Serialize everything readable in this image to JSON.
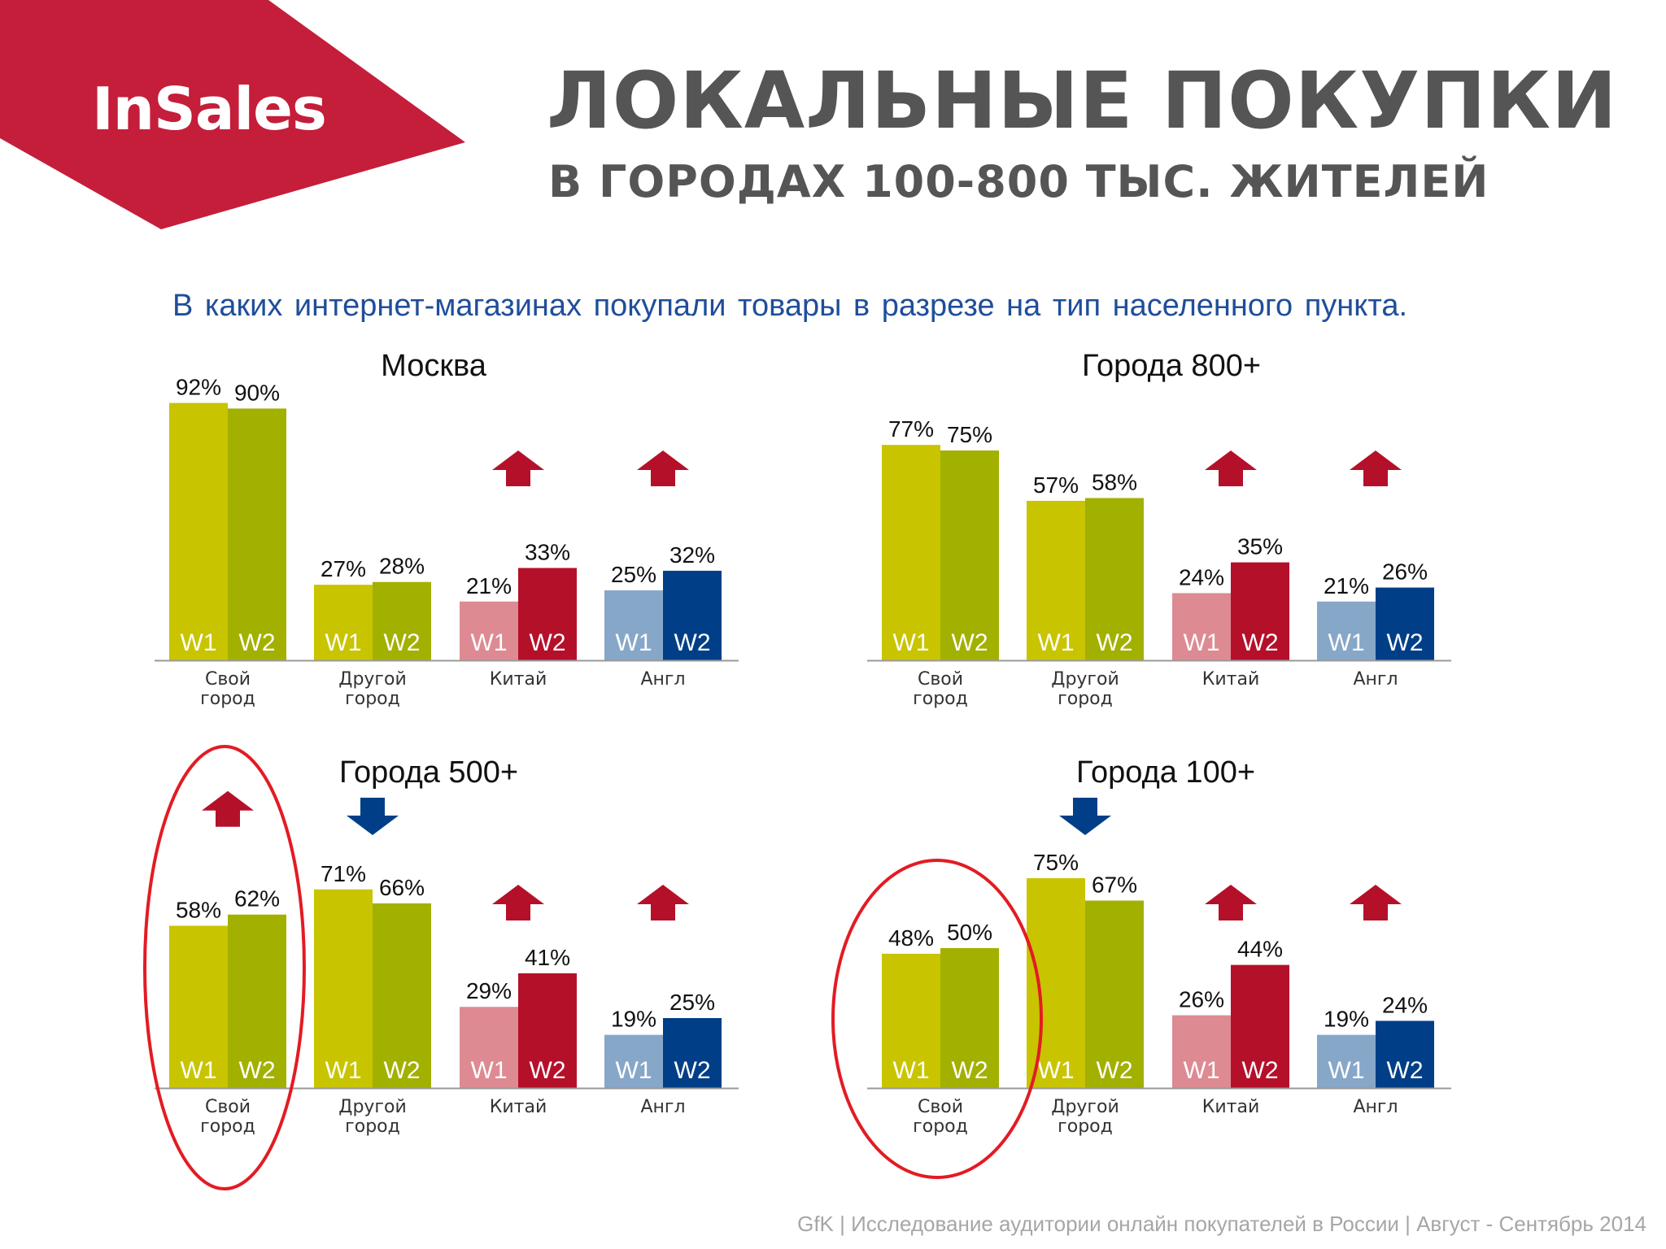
{
  "brand": {
    "logo_text": "InSales",
    "colors": {
      "banner": "#c41e3a"
    }
  },
  "header": {
    "title": "ЛОКАЛЬНЫЕ ПОКУПКИ",
    "subtitle": "В ГОРОДАХ 100-800 ТЫС. ЖИТЕЛЕЙ"
  },
  "question": "В каких интернет-магазинах покупали товары в разрезе на тип населенного пункта.",
  "footer": "GfK | Исследование аудитории онлайн покупателей в России | Август - Сентябрь 2014",
  "colors": {
    "own_w1": "#c8c400",
    "own_w2": "#a2b000",
    "china_w1": "#dd8a93",
    "china_w2": "#b5102a",
    "uk_w1": "#87a7c9",
    "uk_w2": "#003f87",
    "arrow_up": "#b5102a",
    "arrow_down": "#003f87",
    "highlight": "#e31b23"
  },
  "chart_data": [
    {
      "type": "bar",
      "title": "Москва",
      "categories": [
        "Свой\nгород",
        "Другой\nгород",
        "Китай",
        "Англ"
      ],
      "series": [
        {
          "name": "W1",
          "values": [
            92,
            27,
            21,
            25
          ]
        },
        {
          "name": "W2",
          "values": [
            90,
            28,
            33,
            32
          ]
        }
      ],
      "value_suffix": "%",
      "trend_arrows": [
        null,
        null,
        "up",
        "up"
      ],
      "highlight_category": null
    },
    {
      "type": "bar",
      "title": "Города 800+",
      "categories": [
        "Свой\nгород",
        "Другой\nгород",
        "Китай",
        "Англ"
      ],
      "series": [
        {
          "name": "W1",
          "values": [
            77,
            57,
            24,
            21
          ]
        },
        {
          "name": "W2",
          "values": [
            75,
            58,
            35,
            26
          ]
        }
      ],
      "value_suffix": "%",
      "trend_arrows": [
        null,
        null,
        "up",
        "up"
      ],
      "highlight_category": null
    },
    {
      "type": "bar",
      "title": "Города 500+",
      "categories": [
        "Свой\nгород",
        "Другой\nгород",
        "Китай",
        "Англ"
      ],
      "series": [
        {
          "name": "W1",
          "values": [
            58,
            71,
            29,
            19
          ]
        },
        {
          "name": "W2",
          "values": [
            62,
            66,
            41,
            25
          ]
        }
      ],
      "value_suffix": "%",
      "trend_arrows": [
        "up",
        "down",
        "up",
        "up"
      ],
      "highlight_category": 0
    },
    {
      "type": "bar",
      "title": "Города 100+",
      "categories": [
        "Свой\nгород",
        "Другой\nгород",
        "Китай",
        "Англ"
      ],
      "series": [
        {
          "name": "W1",
          "values": [
            48,
            75,
            26,
            19
          ]
        },
        {
          "name": "W2",
          "values": [
            50,
            67,
            44,
            24
          ]
        }
      ],
      "value_suffix": "%",
      "trend_arrows": [
        null,
        "down",
        "up",
        "up"
      ],
      "highlight_category": 0
    }
  ]
}
